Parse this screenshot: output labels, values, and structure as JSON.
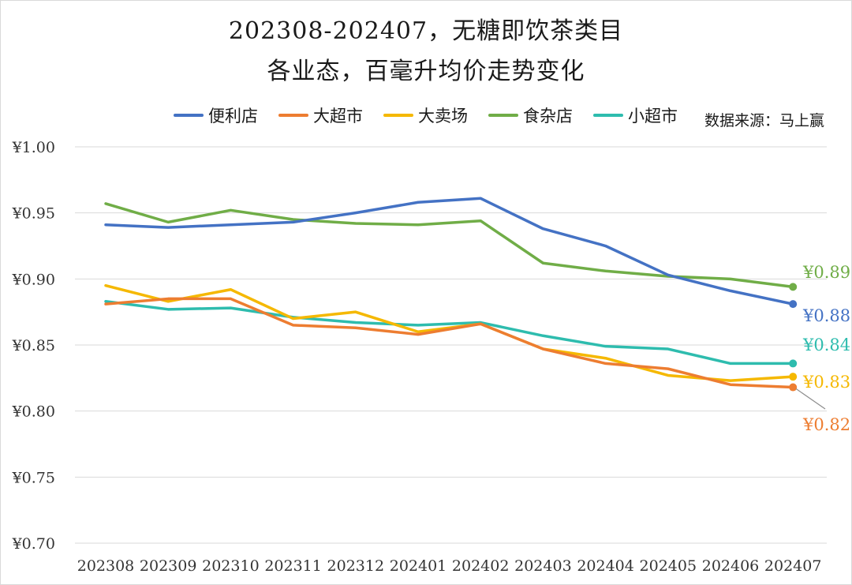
{
  "chart_data": {
    "type": "line",
    "title_line1": "202308-202407，无糖即饮茶类目",
    "title_line2": "各业态，百毫升均价走势变化",
    "source": "数据来源：马上赢",
    "categories": [
      "202308",
      "202309",
      "202310",
      "202311",
      "202312",
      "202401",
      "202402",
      "202403",
      "202404",
      "202405",
      "202406",
      "202407"
    ],
    "y_tick_labels": [
      "¥1.00",
      "¥0.95",
      "¥0.90",
      "¥0.85",
      "¥0.80",
      "¥0.75",
      "¥0.70"
    ],
    "y_ticks": [
      1.0,
      0.95,
      0.9,
      0.85,
      0.8,
      0.75,
      0.7
    ],
    "ylim": [
      0.7,
      1.0
    ],
    "grid": true,
    "legend_position": "top",
    "series": [
      {
        "name": "便利店",
        "color": "#4472C4",
        "end_label": "¥0.88",
        "values": [
          0.941,
          0.939,
          0.941,
          0.943,
          0.95,
          0.958,
          0.961,
          0.938,
          0.925,
          0.903,
          0.891,
          0.881
        ]
      },
      {
        "name": "大超市",
        "color": "#ED7D31",
        "end_label": "¥0.82",
        "values": [
          0.881,
          0.885,
          0.885,
          0.865,
          0.863,
          0.858,
          0.866,
          0.847,
          0.836,
          0.832,
          0.82,
          0.818
        ]
      },
      {
        "name": "大卖场",
        "color": "#F5B800",
        "end_label": "¥0.83",
        "values": [
          0.895,
          0.883,
          0.892,
          0.87,
          0.875,
          0.86,
          0.866,
          0.847,
          0.84,
          0.827,
          0.823,
          0.826
        ]
      },
      {
        "name": "食杂店",
        "color": "#70AD47",
        "end_label": "¥0.89",
        "values": [
          0.957,
          0.943,
          0.952,
          0.945,
          0.942,
          0.941,
          0.944,
          0.912,
          0.906,
          0.902,
          0.9,
          0.894
        ]
      },
      {
        "name": "小超市",
        "color": "#2EBCAE",
        "end_label": "¥0.84",
        "values": [
          0.883,
          0.877,
          0.878,
          0.871,
          0.867,
          0.865,
          0.867,
          0.857,
          0.849,
          0.847,
          0.836,
          0.836
        ]
      }
    ]
  }
}
